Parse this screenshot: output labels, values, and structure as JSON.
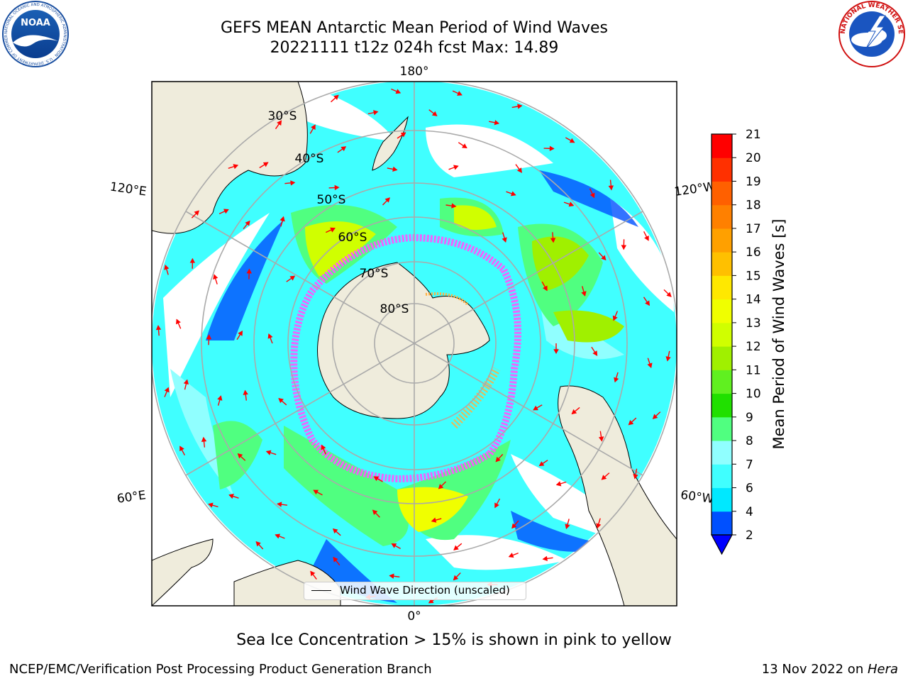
{
  "title": {
    "line1": "GEFS MEAN Antarctic Mean Period of Wind Waves",
    "line2": "20221111 t12z 024h fcst   Max: 14.89"
  },
  "logos": {
    "left": {
      "icon": "noaa-logo",
      "text": "NOAA",
      "ring_text": "NATIONAL OCEANIC AND ATMOSPHERIC ADMINISTRATION · U.S. DEPARTMENT OF COMMERCE"
    },
    "right": {
      "icon": "national-weather-service-logo",
      "ring_text": "NATIONAL WEATHER SERVICE"
    }
  },
  "map": {
    "projection": "south-polar-stereographic",
    "longitude_labels": [
      "180°",
      "120°E",
      "120°W",
      "60°E",
      "60°W",
      "0°"
    ],
    "latitude_labels": [
      "30°S",
      "40°S",
      "50°S",
      "60°S",
      "70°S",
      "80°S"
    ],
    "wind_direction_arrow_color": "#ff0000",
    "land_color": "#efecdc",
    "sea_ice_colors": [
      "#ff55ff",
      "#ffb040"
    ]
  },
  "legend": {
    "label": "Wind Wave Direction (unscaled)"
  },
  "colorbar": {
    "label": "Mean Period of Wind Waves [s]",
    "ticks": [
      "2",
      "4",
      "6",
      "7",
      "8",
      "9",
      "10",
      "11",
      "12",
      "13",
      "14",
      "15",
      "16",
      "17",
      "18",
      "19",
      "20",
      "21"
    ],
    "colors": [
      "#0050ff",
      "#00e8ff",
      "#40ffff",
      "#90ffff",
      "#50ff80",
      "#20e000",
      "#60f020",
      "#a0f000",
      "#d0ff00",
      "#f0ff00",
      "#ffe800",
      "#ffc000",
      "#ffa000",
      "#ff8000",
      "#ff6000",
      "#ff3000",
      "#ff0000"
    ],
    "extend_color": "#0000ff"
  },
  "ice_note": "Sea Ice Concentration > 15% is shown in pink to yellow",
  "footer": {
    "left": "NCEP/EMC/Verification Post Processing Product Generation Branch",
    "right_date": "13 Nov 2022 on ",
    "right_machine": "Hera"
  }
}
